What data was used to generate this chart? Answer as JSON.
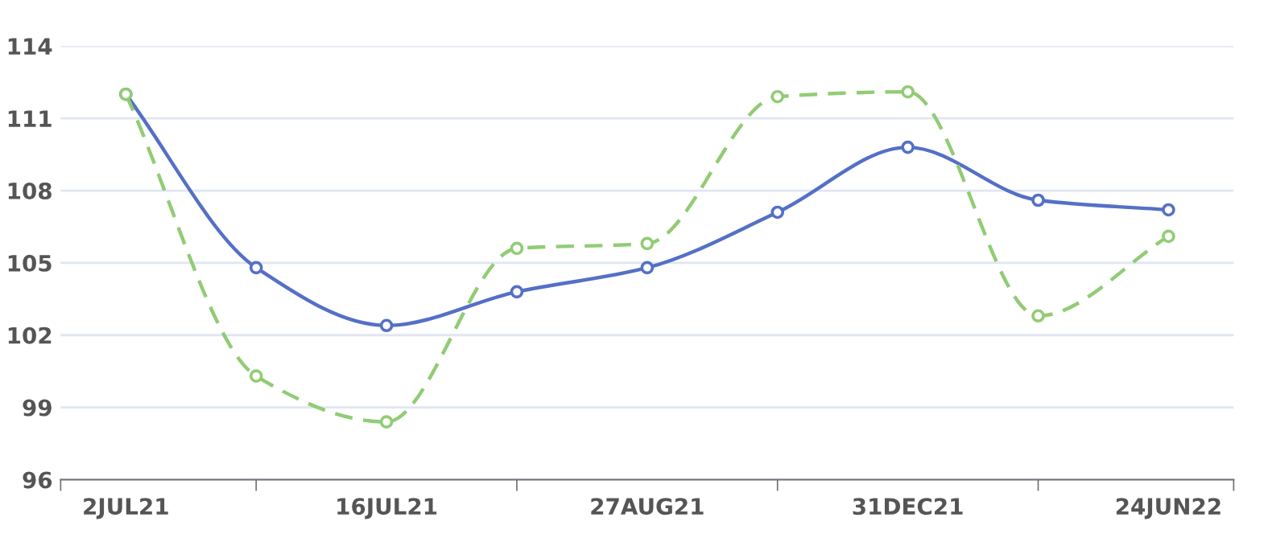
{
  "chart_data": {
    "type": "line",
    "categories": [
      "2JUL21",
      null,
      "16JUL21",
      null,
      "27AUG21",
      null,
      "31DEC21",
      null,
      "24JUN22"
    ],
    "series": [
      {
        "color": "#5470c6",
        "line_style": "solid",
        "values": [
          112,
          104.8,
          102.4,
          103.8,
          104.8,
          107.1,
          109.8,
          107.6,
          107.2
        ]
      },
      {
        "color": "#91cc75",
        "line_style": "dashed",
        "values": [
          112,
          100.3,
          98.4,
          105.6,
          105.8,
          111.9,
          112.1,
          102.8,
          106.1
        ]
      }
    ],
    "ylim": [
      96,
      114
    ],
    "yticks": [
      96,
      99,
      102,
      105,
      108,
      111,
      114
    ],
    "grid": "y",
    "marker": "circle",
    "legend": false
  }
}
